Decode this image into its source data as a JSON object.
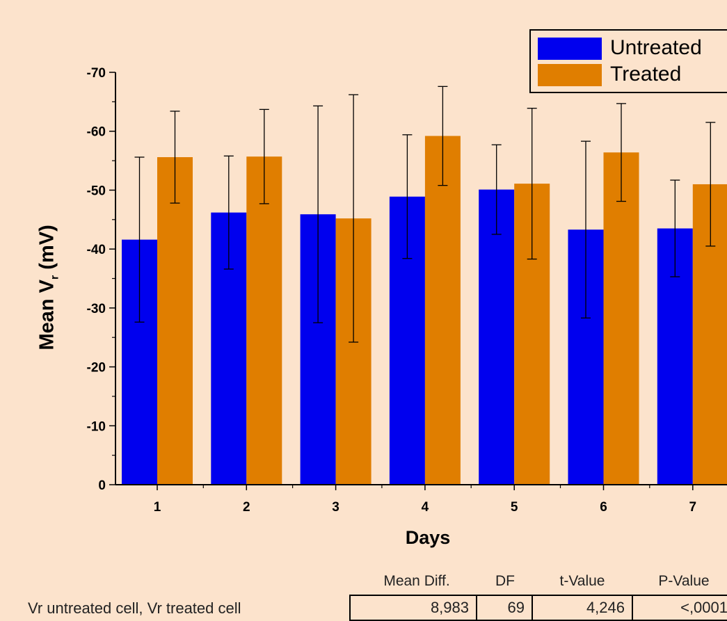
{
  "chart_data": {
    "type": "bar",
    "xlabel": "Days",
    "ylabel": "Mean V",
    "ylabel_subscript": "r",
    "ylabel_unit": "(mV)",
    "categories": [
      "1",
      "2",
      "3",
      "4",
      "5",
      "6",
      "7"
    ],
    "ylim": [
      0,
      -70
    ],
    "yticks": [
      "0",
      "-10",
      "-20",
      "-30",
      "-40",
      "-50",
      "-60",
      "-70"
    ],
    "legend_position": "top-right",
    "series": [
      {
        "name": "Untreated",
        "color": "#0000ee",
        "values": [
          -41.6,
          -46.2,
          -45.9,
          -48.9,
          -50.1,
          -43.3,
          -43.5
        ],
        "error": [
          14.0,
          9.6,
          18.4,
          10.5,
          7.6,
          15.0,
          8.2
        ]
      },
      {
        "name": "Treated",
        "color": "#e07e00",
        "values": [
          -55.6,
          -55.7,
          -45.2,
          -59.2,
          -51.1,
          -56.4,
          -51.0
        ],
        "error": [
          7.8,
          8.0,
          21.0,
          8.4,
          12.8,
          8.3,
          10.5
        ]
      }
    ]
  },
  "stats": {
    "headers": [
      "Mean Diff.",
      "DF",
      "t-Value",
      "P-Value"
    ],
    "row_label": "Vr untreated cell, Vr treated cell",
    "values": [
      "8,983",
      "69",
      "4,246",
      "<,0001"
    ]
  }
}
